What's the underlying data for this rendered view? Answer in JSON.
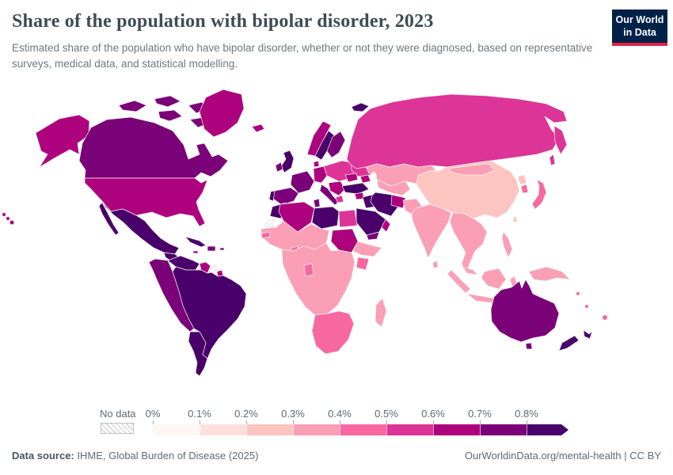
{
  "header": {
    "title": "Share of the population with bipolar disorder, 2023",
    "subtitle": "Estimated share of the population who have bipolar disorder, whether or not they were diagnosed, based on representative surveys, medical data, and statistical modelling."
  },
  "brand": {
    "logo_line1": "Our World",
    "logo_line2": "in Data",
    "logo_bg": "#002147",
    "logo_accent": "#dc2547"
  },
  "legend": {
    "no_data_label": "No data",
    "ticks": [
      "0%",
      "0.1%",
      "0.2%",
      "0.3%",
      "0.4%",
      "0.5%",
      "0.6%",
      "0.7%",
      "0.8%"
    ],
    "bin_colors": [
      "#fff7f3",
      "#fde0dd",
      "#fcc5c0",
      "#fa9fb5",
      "#f768a1",
      "#dd3497",
      "#ae017e",
      "#7a0177",
      "#49006a"
    ]
  },
  "footer": {
    "source_label": "Data source:",
    "source_value": "IHME, Global Burden of Disease (2025)",
    "link_text": "OurWorldinData.org/mental-health",
    "divider": "|",
    "license": "CC BY"
  },
  "chart_data": {
    "type": "choropleth-world-map",
    "title": "Share of the population with bipolar disorder",
    "year": "2023",
    "unit": "% of population",
    "legend_position": "bottom",
    "bins": [
      {
        "range": "0–0.1%",
        "color": "#fff7f3"
      },
      {
        "range": "0.1–0.2%",
        "color": "#fde0dd"
      },
      {
        "range": "0.2–0.3%",
        "color": "#fcc5c0"
      },
      {
        "range": "0.3–0.4%",
        "color": "#fa9fb5"
      },
      {
        "range": "0.4–0.5%",
        "color": "#f768a1"
      },
      {
        "range": "0.5–0.6%",
        "color": "#dd3497"
      },
      {
        "range": "0.6–0.7%",
        "color": "#ae017e"
      },
      {
        "range": "0.7–0.8%",
        "color": "#7a0177"
      },
      {
        "range": "0.8%+",
        "color": "#49006a"
      },
      {
        "range": "No data",
        "color": "no-data"
      }
    ],
    "regions": [
      {
        "id": "canada",
        "name": "Canada",
        "value": "0.7–0.8%",
        "color": "#7a0177"
      },
      {
        "id": "usa",
        "name": "United States",
        "value": "0.6–0.7%",
        "color": "#ae017e"
      },
      {
        "id": "greenland",
        "name": "Greenland",
        "value": "0.6–0.7%",
        "color": "#ae017e"
      },
      {
        "id": "mexico",
        "name": "Mexico",
        "value": "0.8%+",
        "color": "#49006a"
      },
      {
        "id": "guatemala",
        "name": "Guatemala",
        "value": "0.8%+",
        "color": "#49006a"
      },
      {
        "id": "honduras-nicaragua",
        "name": "Honduras/Nicaragua",
        "value": "0.6–0.7%",
        "color": "#ae017e"
      },
      {
        "id": "costa-rica-panama",
        "name": "Costa Rica/Panama",
        "value": "0.7–0.8%",
        "color": "#7a0177"
      },
      {
        "id": "cuba",
        "name": "Cuba",
        "value": "0.8%+",
        "color": "#49006a"
      },
      {
        "id": "jamaica",
        "name": "Jamaica",
        "value": "0.6–0.7%",
        "color": "#ae017e"
      },
      {
        "id": "hispaniola",
        "name": "Dominican Republic/Haiti",
        "value": "0.7–0.8%",
        "color": "#7a0177"
      },
      {
        "id": "venezuela",
        "name": "Venezuela",
        "value": "0.8%+",
        "color": "#49006a"
      },
      {
        "id": "guyanas",
        "name": "Guyana/French Guiana",
        "value": "0.6–0.7%",
        "color": "#ae017e"
      },
      {
        "id": "suriname",
        "name": "Suriname",
        "value": "No data",
        "color": "no-data"
      },
      {
        "id": "andean",
        "name": "Colombia/Ecuador/Peru",
        "value": "0.7–0.8%",
        "color": "#7a0177"
      },
      {
        "id": "bolivia",
        "name": "Bolivia",
        "value": "0.6–0.7%",
        "color": "#ae017e"
      },
      {
        "id": "brazil",
        "name": "Brazil",
        "value": "0.8%+",
        "color": "#49006a"
      },
      {
        "id": "southern-cone",
        "name": "Argentina/Chile",
        "value": "0.8%+",
        "color": "#49006a"
      },
      {
        "id": "iceland",
        "name": "Iceland",
        "value": "0.6–0.7%",
        "color": "#ae017e"
      },
      {
        "id": "uk",
        "name": "United Kingdom",
        "value": "0.8%+",
        "color": "#49006a"
      },
      {
        "id": "ireland",
        "name": "Ireland",
        "value": "0.7–0.8%",
        "color": "#7a0177"
      },
      {
        "id": "norway",
        "name": "Norway",
        "value": "0.6–0.7%",
        "color": "#ae017e"
      },
      {
        "id": "sweden",
        "name": "Sweden",
        "value": "0.8%+",
        "color": "#49006a"
      },
      {
        "id": "finland",
        "name": "Finland",
        "value": "0.7–0.8%",
        "color": "#7a0177"
      },
      {
        "id": "svalbard",
        "name": "Svalbard",
        "value": "0.8%+",
        "color": "#49006a"
      },
      {
        "id": "denmark",
        "name": "Denmark",
        "value": "0.6–0.7%",
        "color": "#ae017e"
      },
      {
        "id": "germany",
        "name": "Germany",
        "value": "0.6–0.7%",
        "color": "#ae017e"
      },
      {
        "id": "france",
        "name": "France",
        "value": "0.7–0.8%",
        "color": "#7a0177"
      },
      {
        "id": "spain",
        "name": "Spain",
        "value": "0.7–0.8%",
        "color": "#7a0177"
      },
      {
        "id": "portugal",
        "name": "Portugal",
        "value": "0.8%+",
        "color": "#49006a"
      },
      {
        "id": "italy",
        "name": "Italy",
        "value": "0.7–0.8%",
        "color": "#7a0177"
      },
      {
        "id": "central-europe",
        "name": "Poland/Central Europe",
        "value": "0.5–0.6%",
        "color": "#dd3497"
      },
      {
        "id": "balkans",
        "name": "Balkans",
        "value": "0.6–0.7%",
        "color": "#ae017e"
      },
      {
        "id": "greece",
        "name": "Greece",
        "value": "0.5–0.6%",
        "color": "#dd3497"
      },
      {
        "id": "ukraine-belarus",
        "name": "Ukraine/Belarus",
        "value": "0.5–0.6%",
        "color": "#dd3497"
      },
      {
        "id": "romania",
        "name": "Romania",
        "value": "0.6–0.7%",
        "color": "#ae017e"
      },
      {
        "id": "russia",
        "name": "Russia",
        "value": "0.5–0.6%",
        "color": "#dd3497"
      },
      {
        "id": "kazakhstan",
        "name": "Kazakhstan",
        "value": "0.3–0.4%",
        "color": "#fa9fb5"
      },
      {
        "id": "central-asia",
        "name": "Central Asia",
        "value": "0.3–0.4%",
        "color": "#fa9fb5"
      },
      {
        "id": "caucasus",
        "name": "Caucasus",
        "value": "0.6–0.7%",
        "color": "#ae017e"
      },
      {
        "id": "turkey",
        "name": "Turkey",
        "value": "0.8%+",
        "color": "#49006a"
      },
      {
        "id": "syria",
        "name": "Syria",
        "value": "0.6–0.7%",
        "color": "#ae017e"
      },
      {
        "id": "iraq",
        "name": "Iraq",
        "value": "0.8%+",
        "color": "#49006a"
      },
      {
        "id": "iran",
        "name": "Iran",
        "value": "0.8%+",
        "color": "#49006a"
      },
      {
        "id": "afghanistan",
        "name": "Afghanistan",
        "value": "0.6–0.7%",
        "color": "#ae017e"
      },
      {
        "id": "pakistan",
        "name": "Pakistan",
        "value": "0.3–0.4%",
        "color": "#fa9fb5"
      },
      {
        "id": "saudi-arabia",
        "name": "Saudi Arabia",
        "value": "0.8%+",
        "color": "#49006a"
      },
      {
        "id": "yemen",
        "name": "Yemen",
        "value": "0.7–0.8%",
        "color": "#7a0177"
      },
      {
        "id": "oman",
        "name": "Oman",
        "value": "0.6–0.7%",
        "color": "#ae017e"
      },
      {
        "id": "india",
        "name": "India",
        "value": "0.3–0.4%",
        "color": "#fa9fb5"
      },
      {
        "id": "sri-lanka",
        "name": "Sri Lanka",
        "value": "0.3–0.4%",
        "color": "#fa9fb5"
      },
      {
        "id": "china",
        "name": "China",
        "value": "0.2–0.3%",
        "color": "#fcc5c0"
      },
      {
        "id": "mongolia",
        "name": "Mongolia",
        "value": "0.3–0.4%",
        "color": "#fa9fb5"
      },
      {
        "id": "north-korea",
        "name": "North Korea",
        "value": "0.2–0.3%",
        "color": "#fcc5c0"
      },
      {
        "id": "south-korea",
        "name": "South Korea",
        "value": "0.4–0.5%",
        "color": "#f768a1"
      },
      {
        "id": "japan",
        "name": "Japan",
        "value": "0.4–0.5%",
        "color": "#f768a1"
      },
      {
        "id": "taiwan",
        "name": "Taiwan",
        "value": "0.2–0.3%",
        "color": "#fcc5c0"
      },
      {
        "id": "indochina",
        "name": "Myanmar/Thailand/Indochina",
        "value": "0.3–0.4%",
        "color": "#fa9fb5"
      },
      {
        "id": "malaysia",
        "name": "Malaysia",
        "value": "0.3–0.4%",
        "color": "#fa9fb5"
      },
      {
        "id": "indonesia",
        "name": "Indonesia",
        "value": "0.3–0.4%",
        "color": "#fa9fb5"
      },
      {
        "id": "philippines",
        "name": "Philippines",
        "value": "0.3–0.4%",
        "color": "#fa9fb5"
      },
      {
        "id": "new-guinea",
        "name": "Papua New Guinea",
        "value": "0.3–0.4%",
        "color": "#fa9fb5"
      },
      {
        "id": "morocco",
        "name": "Morocco",
        "value": "0.8%+",
        "color": "#49006a"
      },
      {
        "id": "western-sahara",
        "name": "Western Sahara",
        "value": "No data",
        "color": "no-data"
      },
      {
        "id": "algeria",
        "name": "Algeria",
        "value": "0.6–0.7%",
        "color": "#ae017e"
      },
      {
        "id": "tunisia",
        "name": "Tunisia",
        "value": "0.7–0.8%",
        "color": "#7a0177"
      },
      {
        "id": "libya",
        "name": "Libya",
        "value": "0.8%+",
        "color": "#49006a"
      },
      {
        "id": "egypt",
        "name": "Egypt",
        "value": "0.5–0.6%",
        "color": "#dd3497"
      },
      {
        "id": "west-africa",
        "name": "West Africa/Sahel",
        "value": "0.3–0.4%",
        "color": "#fa9fb5"
      },
      {
        "id": "senegal",
        "name": "Senegal",
        "value": "0.4–0.5%",
        "color": "#f768a1"
      },
      {
        "id": "ghana",
        "name": "Ghana",
        "value": "0.4–0.5%",
        "color": "#f768a1"
      },
      {
        "id": "sudan",
        "name": "Sudan",
        "value": "0.6–0.7%",
        "color": "#ae017e"
      },
      {
        "id": "horn-of-africa",
        "name": "Ethiopia/Somalia",
        "value": "0.3–0.4%",
        "color": "#fa9fb5"
      },
      {
        "id": "kenya",
        "name": "Kenya",
        "value": "0.4–0.5%",
        "color": "#f768a1"
      },
      {
        "id": "central-africa",
        "name": "Central/East Africa",
        "value": "0.3–0.4%",
        "color": "#fa9fb5"
      },
      {
        "id": "gabon-congo",
        "name": "Gabon/Congo",
        "value": "0.4–0.5%",
        "color": "#f768a1"
      },
      {
        "id": "southern-africa",
        "name": "Southern Africa",
        "value": "0.4–0.5%",
        "color": "#f768a1"
      },
      {
        "id": "madagascar",
        "name": "Madagascar",
        "value": "0.3–0.4%",
        "color": "#fa9fb5"
      },
      {
        "id": "australia",
        "name": "Australia",
        "value": "0.7–0.8%",
        "color": "#7a0177"
      },
      {
        "id": "new-zealand",
        "name": "New Zealand",
        "value": "0.8%+",
        "color": "#49006a"
      },
      {
        "id": "pacific-islands",
        "name": "Pacific Islands",
        "value": "0.4–0.5%",
        "color": "#f768a1"
      }
    ]
  }
}
